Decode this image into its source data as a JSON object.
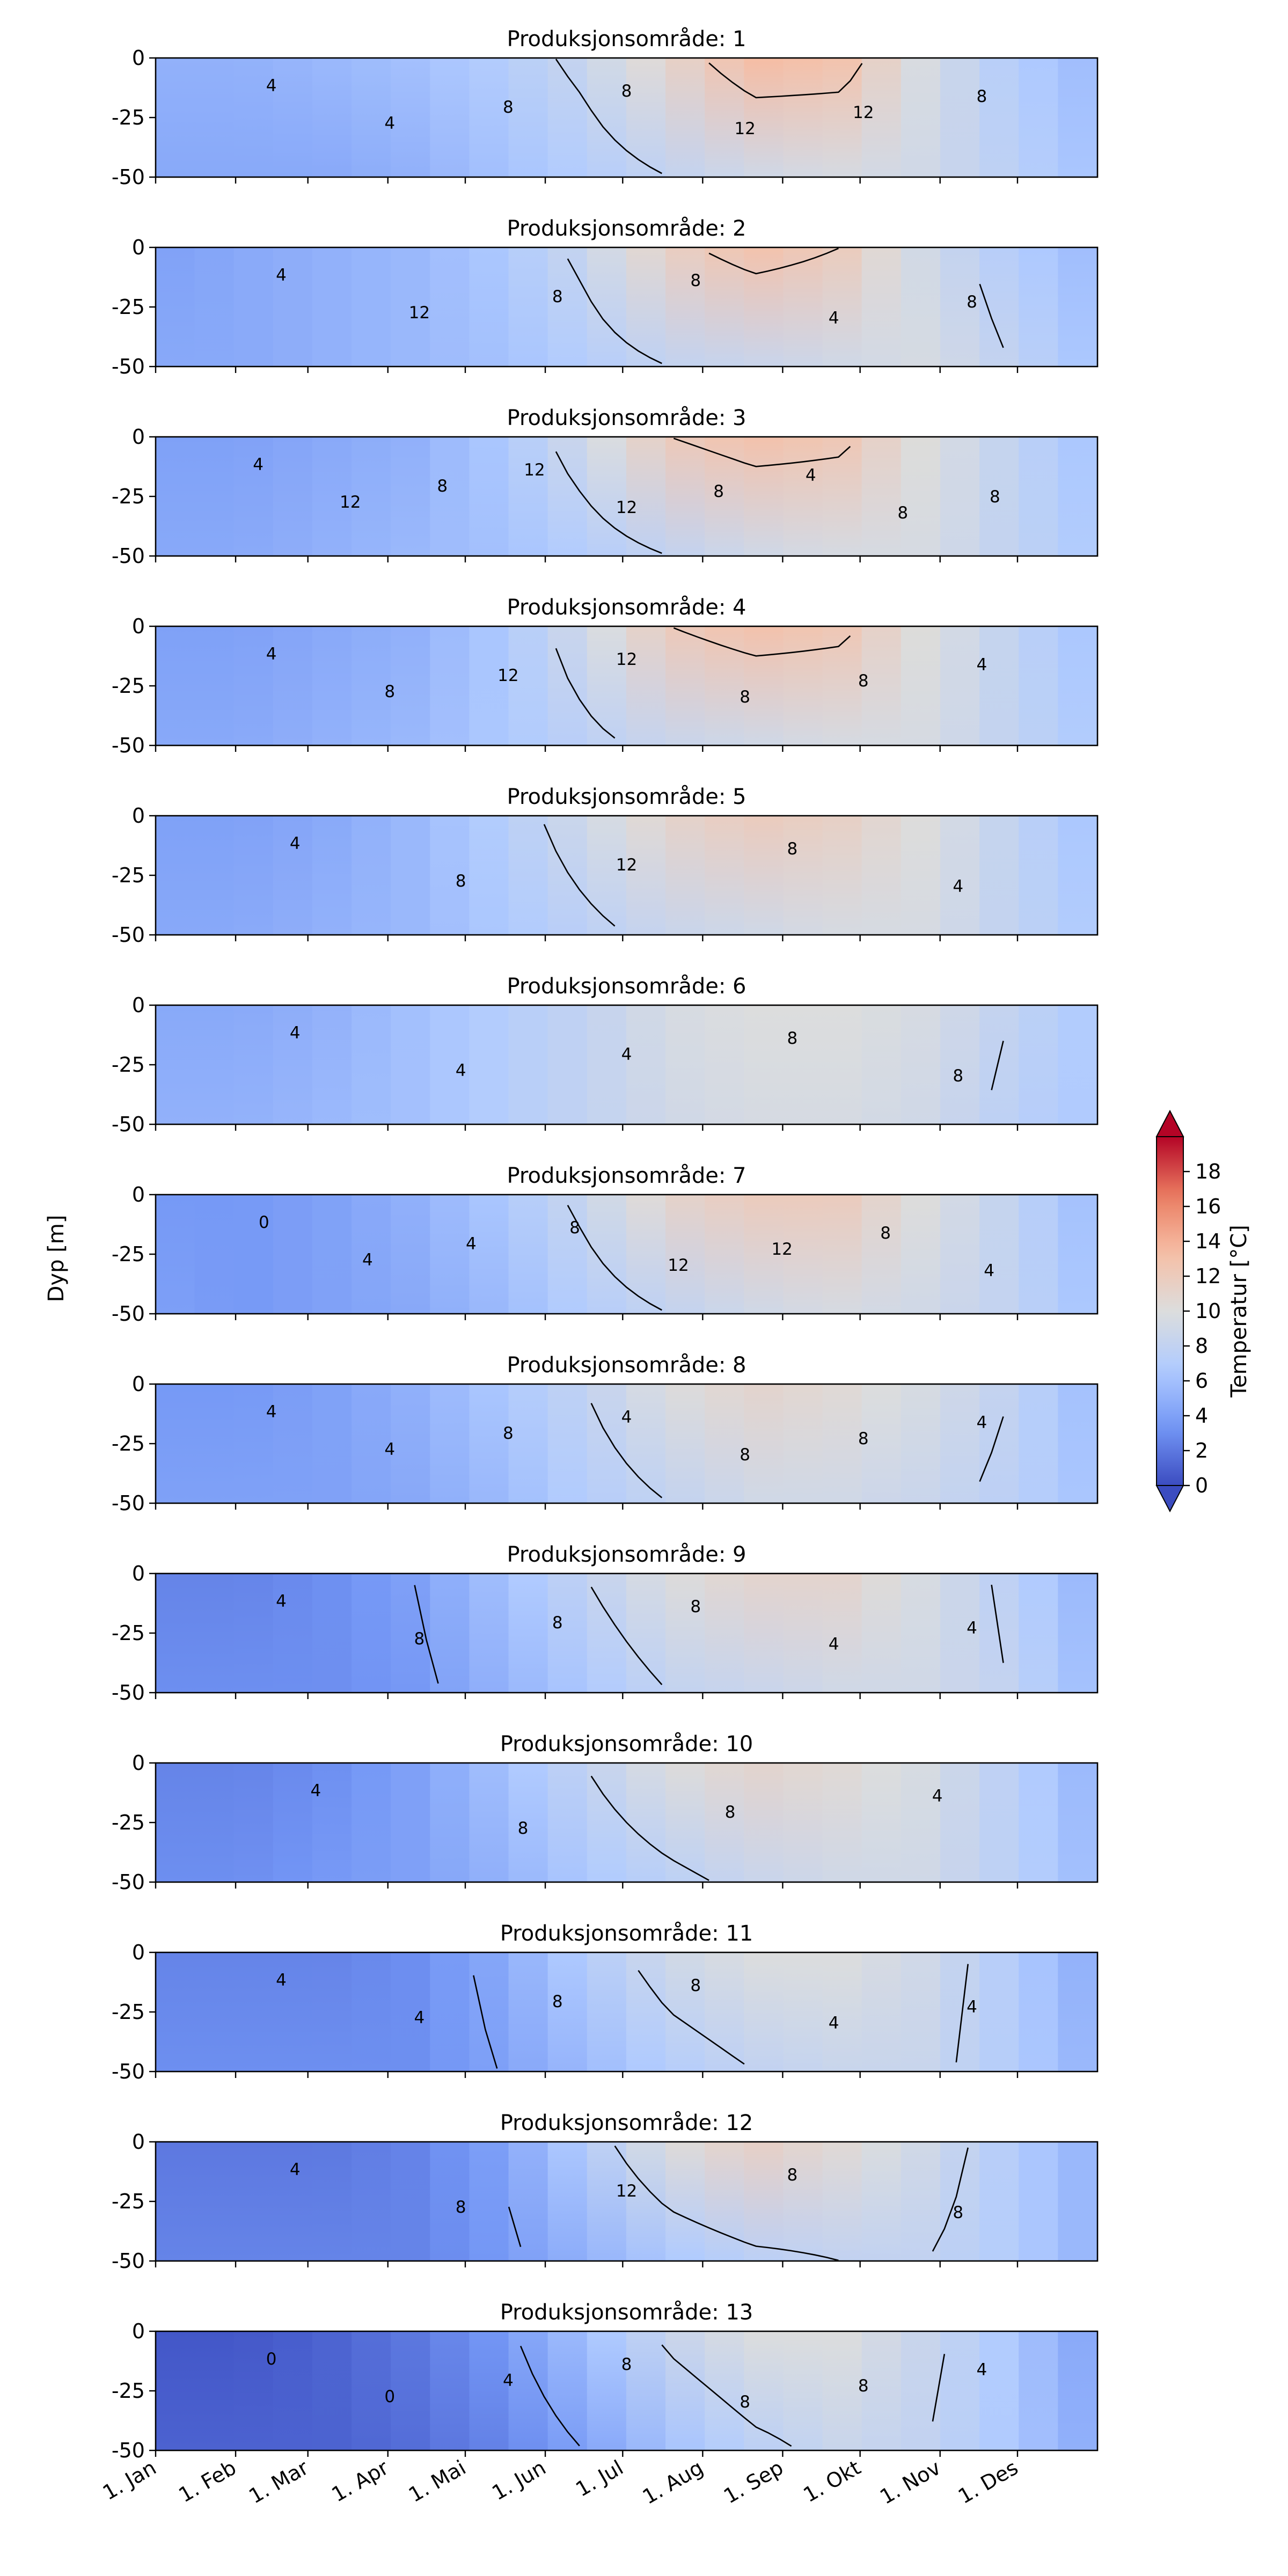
{
  "figure": {
    "ylabel": "Dyp [m]",
    "xtick_labels": [
      "1. Jan",
      "1. Feb",
      "1. Mar",
      "1. Apr",
      "1. Mai",
      "1. Jun",
      "1. Jul",
      "1. Aug",
      "1. Sep",
      "1. Okt",
      "1. Nov",
      "1. Des"
    ]
  },
  "colorbar": {
    "label": "Temperatur [°C]",
    "vmin": 0,
    "vmax": 20,
    "extend": "both",
    "ticks": [
      "0",
      "2",
      "4",
      "6",
      "8",
      "10",
      "12",
      "14",
      "16",
      "18"
    ],
    "colors": [
      "#3b4cc0",
      "#7396f5",
      "#b0cbff",
      "#dcdddd",
      "#f6bfa6",
      "#ea7b60",
      "#b40426"
    ]
  },
  "chart_data": {
    "type": "heatmap",
    "x_axis": {
      "label": "",
      "ticks": [
        "1. Jan",
        "1. Feb",
        "1. Mar",
        "1. Apr",
        "1. Mai",
        "1. Jun",
        "1. Jul",
        "1. Aug",
        "1. Sep",
        "1. Okt",
        "1. Nov",
        "1. Des"
      ],
      "range_days": [
        0,
        365
      ]
    },
    "y_axis": {
      "label": "Dyp [m]",
      "ticks": [
        0,
        -25,
        -50
      ],
      "range": [
        -50,
        0
      ]
    },
    "value_label": "Temperatur [°C]",
    "contour_levels": [
      0,
      4,
      8,
      12
    ],
    "panels": [
      {
        "title": "Produksjonsområde: 1",
        "surface": [
          5,
          5,
          5.5,
          6,
          7,
          8.5,
          11,
          13.5,
          13,
          9.5,
          7,
          5.5
        ],
        "deep": [
          4.5,
          4.5,
          4.5,
          5,
          6,
          7,
          8,
          9,
          9.5,
          9,
          7.5,
          6
        ],
        "labels": [
          "4",
          "4",
          "8",
          "8",
          "12",
          "12",
          "8"
        ]
      },
      {
        "title": "Produksjonsområde: 2",
        "surface": [
          4,
          4.5,
          5,
          5.5,
          6.5,
          8.5,
          11.5,
          13,
          12,
          9,
          7,
          5.5
        ],
        "deep": [
          4.5,
          4.5,
          5,
          5.5,
          6,
          7,
          8,
          8.5,
          9,
          9.5,
          8,
          6
        ],
        "labels": [
          "4",
          "12",
          "8",
          "8",
          "4",
          "8"
        ]
      },
      {
        "title": "Produksjonsområde: 3",
        "surface": [
          4,
          4,
          4.5,
          5,
          6.5,
          9,
          12,
          13,
          12.5,
          10,
          8,
          6
        ],
        "deep": [
          4.5,
          4.5,
          5,
          5.5,
          6,
          7,
          8,
          9,
          9.5,
          9.5,
          8,
          6.5
        ],
        "labels": [
          "4",
          "12",
          "8",
          "12",
          "12",
          "8",
          "4",
          "8",
          "8"
        ]
      },
      {
        "title": "Produksjonsområde: 4",
        "surface": [
          4,
          4,
          4.5,
          5,
          6.5,
          9,
          12,
          13,
          12.5,
          10,
          8,
          6
        ],
        "deep": [
          4.5,
          4.5,
          5,
          5.5,
          6.5,
          7.5,
          8.5,
          9,
          9.5,
          9.5,
          8,
          6.5
        ],
        "labels": [
          "4",
          "8",
          "12",
          "12",
          "8",
          "8",
          "4"
        ]
      },
      {
        "title": "Produksjonsområde: 5",
        "surface": [
          4,
          4,
          4.5,
          5.5,
          7,
          9,
          11,
          12,
          11.5,
          10,
          8,
          6
        ],
        "deep": [
          4.5,
          4.5,
          5,
          5.5,
          6.5,
          7.5,
          8.5,
          9,
          9.5,
          9.5,
          8,
          6.5
        ],
        "labels": [
          "4",
          "8",
          "12",
          "8",
          "4"
        ]
      },
      {
        "title": "Produksjonsområde: 6",
        "surface": [
          4.5,
          4.5,
          5,
          6,
          7,
          8,
          9.5,
          10,
          10,
          9.5,
          8,
          6.5
        ],
        "deep": [
          5,
          5,
          5.5,
          6,
          7,
          8,
          9,
          9.5,
          9.5,
          9,
          7.5,
          6.5
        ],
        "labels": [
          "4",
          "4",
          "4",
          "8",
          "8"
        ]
      },
      {
        "title": "Produksjonsområde: 7",
        "surface": [
          3.5,
          3.5,
          4,
          5,
          6.5,
          8.5,
          11,
          12,
          12,
          10,
          8,
          5.5
        ],
        "deep": [
          4,
          3.5,
          4,
          4.5,
          5.5,
          7,
          8,
          9,
          9.5,
          9,
          8,
          6
        ],
        "labels": [
          "0",
          "4",
          "4",
          "8",
          "12",
          "12",
          "8",
          "4"
        ]
      },
      {
        "title": "Produksjonsområde: 8",
        "surface": [
          3.5,
          3.5,
          4,
          5,
          6.5,
          8,
          10,
          11,
          10.5,
          9.5,
          8,
          5.5
        ],
        "deep": [
          4,
          4,
          4,
          4.5,
          5.5,
          7,
          8,
          9,
          9,
          8.5,
          7.5,
          6
        ],
        "labels": [
          "4",
          "4",
          "8",
          "4",
          "8",
          "8",
          "4"
        ]
      },
      {
        "title": "Produksjonsområde: 9",
        "surface": [
          2.5,
          2.5,
          3,
          4,
          6,
          8,
          10,
          11,
          11,
          9.5,
          7.5,
          5
        ],
        "deep": [
          3,
          3,
          3,
          3.5,
          5,
          6.5,
          8,
          8.5,
          9,
          9,
          8,
          5.5
        ],
        "labels": [
          "4",
          "8",
          "8",
          "8",
          "4",
          "4"
        ]
      },
      {
        "title": "Produksjonsområde: 10",
        "surface": [
          2.5,
          2.5,
          3,
          4,
          6,
          8,
          10,
          11,
          10.5,
          9.5,
          7.5,
          5
        ],
        "deep": [
          3,
          3,
          3.5,
          4,
          5,
          6.5,
          7.5,
          8.5,
          9,
          9,
          7.5,
          5.5
        ],
        "labels": [
          "4",
          "8",
          "8",
          "4"
        ]
      },
      {
        "title": "Produksjonsområde: 11",
        "surface": [
          2.5,
          2.5,
          2.5,
          3,
          4.5,
          7,
          9,
          10,
          10,
          9,
          7,
          4.5
        ],
        "deep": [
          3,
          3,
          3,
          3,
          4,
          5.5,
          7,
          8,
          8.5,
          8.5,
          7,
          5
        ],
        "labels": [
          "4",
          "4",
          "8",
          "8",
          "4",
          "4"
        ]
      },
      {
        "title": "Produksjonsområde: 12",
        "surface": [
          2,
          2,
          2,
          2.5,
          4,
          7,
          10,
          11.5,
          10.5,
          9,
          7,
          5
        ],
        "deep": [
          2.5,
          2.5,
          2.5,
          2.5,
          3.5,
          5,
          6.5,
          7.5,
          8,
          8,
          7,
          5
        ],
        "labels": [
          "4",
          "8",
          "12",
          "8",
          "8"
        ]
      },
      {
        "title": "Produksjonsområde: 13",
        "surface": [
          0.5,
          0.5,
          1,
          2,
          3.5,
          6,
          8.5,
          10,
          10,
          8.5,
          6.5,
          4
        ],
        "deep": [
          1,
          1,
          1,
          1.5,
          2.5,
          4,
          6,
          7.5,
          8.5,
          8,
          6.5,
          4.5
        ],
        "labels": [
          "0",
          "0",
          "4",
          "8",
          "8",
          "8",
          "4"
        ]
      }
    ]
  }
}
